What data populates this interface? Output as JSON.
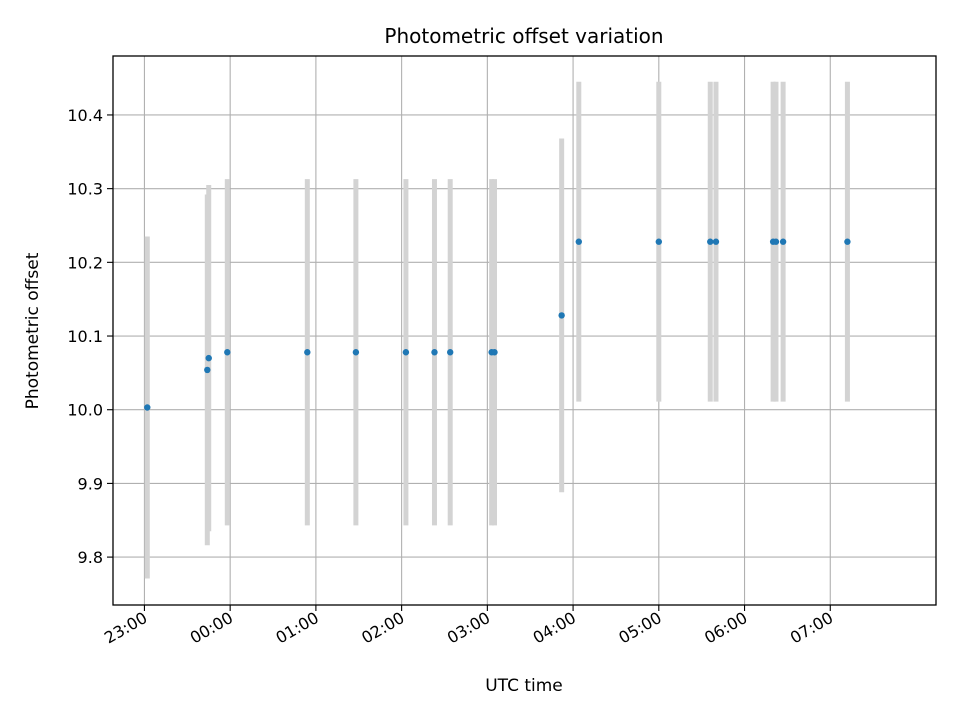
{
  "chart_data": {
    "type": "scatter",
    "title": "Photometric offset variation",
    "xlabel": "UTC time",
    "ylabel": "Photometric offset",
    "grid": true,
    "x_unit": "UTC clock time (hours, values past 24 roll over to next day)",
    "xlim": [
      "22:38",
      "08:14"
    ],
    "ylim": [
      9.735,
      10.48
    ],
    "x_ticks": [
      "23:00",
      "00:00",
      "01:00",
      "02:00",
      "03:00",
      "04:00",
      "05:00",
      "06:00",
      "07:00"
    ],
    "y_ticks": [
      "9.8",
      "9.9",
      "10.0",
      "10.1",
      "10.2",
      "10.3",
      "10.4"
    ],
    "marker_color": "#1f77b4",
    "errorbar_color": "#d3d3d3",
    "points": [
      {
        "t": "23:02",
        "y": 10.003,
        "err": 0.232
      },
      {
        "t": "23:44",
        "y": 10.054,
        "err": 0.238
      },
      {
        "t": "23:45",
        "y": 10.07,
        "err": 0.235
      },
      {
        "t": "23:58",
        "y": 10.078,
        "err": 0.235
      },
      {
        "t": "00:54",
        "y": 10.078,
        "err": 0.235
      },
      {
        "t": "01:28",
        "y": 10.078,
        "err": 0.235
      },
      {
        "t": "02:03",
        "y": 10.078,
        "err": 0.235
      },
      {
        "t": "02:23",
        "y": 10.078,
        "err": 0.235
      },
      {
        "t": "02:34",
        "y": 10.078,
        "err": 0.235
      },
      {
        "t": "03:03",
        "y": 10.078,
        "err": 0.235
      },
      {
        "t": "03:05",
        "y": 10.078,
        "err": 0.235
      },
      {
        "t": "03:52",
        "y": 10.128,
        "err": 0.24
      },
      {
        "t": "04:04",
        "y": 10.228,
        "err": 0.217
      },
      {
        "t": "05:00",
        "y": 10.228,
        "err": 0.217
      },
      {
        "t": "05:36",
        "y": 10.228,
        "err": 0.217
      },
      {
        "t": "05:40",
        "y": 10.228,
        "err": 0.217
      },
      {
        "t": "06:20",
        "y": 10.228,
        "err": 0.217
      },
      {
        "t": "06:22",
        "y": 10.228,
        "err": 0.217
      },
      {
        "t": "06:27",
        "y": 10.228,
        "err": 0.217
      },
      {
        "t": "07:12",
        "y": 10.228,
        "err": 0.217
      }
    ]
  }
}
